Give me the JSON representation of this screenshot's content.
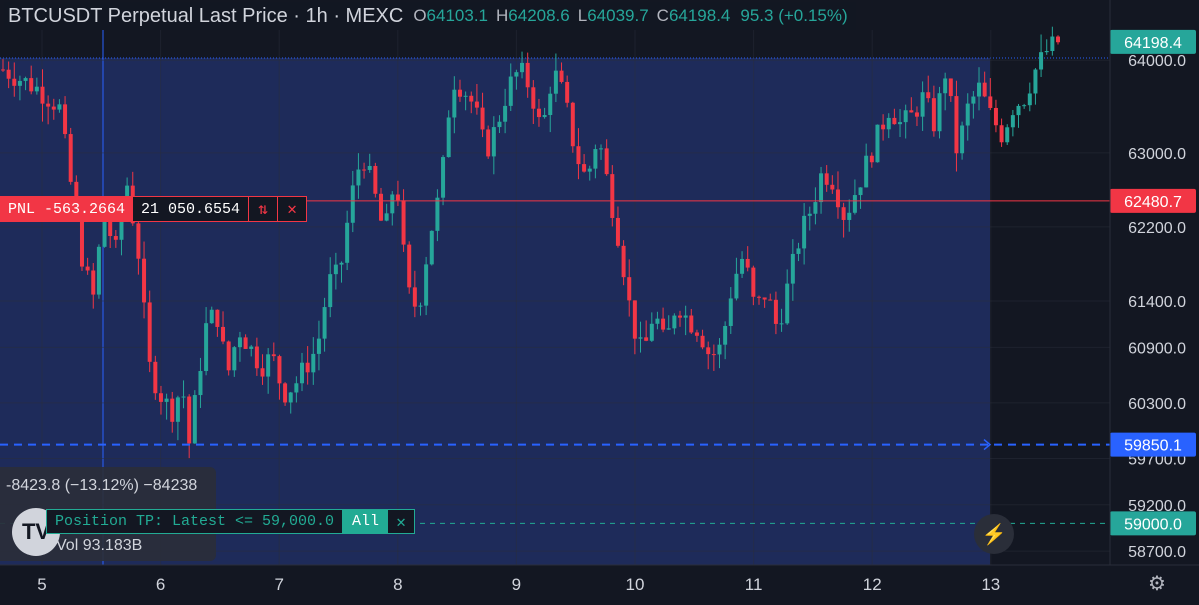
{
  "header": {
    "title": "BTCUSDT Perpetual Last Price · 1h · MEXC",
    "ohlc": [
      {
        "key": "O",
        "value": "64103.1"
      },
      {
        "key": "H",
        "value": "64208.6"
      },
      {
        "key": "L",
        "value": "64039.7"
      },
      {
        "key": "C",
        "value": "64198.4"
      }
    ],
    "change": "95.3 (+0.15%)"
  },
  "position": {
    "pnl_label": "PNL -563.2664",
    "size": "21 050.6554",
    "reverse_icon": "reverse-arrows-icon",
    "close_icon": "close-icon"
  },
  "take_profit": {
    "label": "Position TP: Latest <= 59,000.0",
    "all_label": "All",
    "close_icon": "close-icon"
  },
  "stats": {
    "measure": "-8423.8 (−13.12%) −84238",
    "volume": "Vol 93.183B"
  },
  "logo_text": "TV",
  "icons": {
    "bolt": "lightning-icon",
    "settings": "gear-icon"
  },
  "colors": {
    "background": "#131722",
    "highlight": "#1e2b5a",
    "up": "#26a69a",
    "down": "#f23645",
    "entry_line": "#f23645",
    "tp_line": "#22ab94",
    "blue_line": "#2962ff"
  },
  "chart_data": {
    "type": "candlestick",
    "title": "BTCUSDT Perpetual Last Price · 1h · MEXC",
    "x_tick_labels": [
      "5",
      "6",
      "7",
      "8",
      "9",
      "10",
      "11",
      "12",
      "13"
    ],
    "y_tick_labels": [
      "64000.0",
      "63000.0",
      "62200.0",
      "61400.0",
      "60900.0",
      "60300.0",
      "59700.0",
      "59200.0",
      "58700.0"
    ],
    "ylim": [
      58550,
      64650
    ],
    "price_labels": [
      {
        "value": 64198.4,
        "text": "64198.4",
        "kind": "last"
      },
      {
        "value": 62480.7,
        "text": "62480.7",
        "kind": "entry"
      },
      {
        "value": 59850.1,
        "text": "59850.1",
        "kind": "blue"
      },
      {
        "value": 59000.0,
        "text": "59000.0",
        "kind": "tp"
      }
    ],
    "close_path": [
      [
        0,
        63900
      ],
      [
        3,
        63700
      ],
      [
        5,
        63500
      ],
      [
        6,
        62700
      ],
      [
        7,
        61900
      ],
      [
        8,
        61400
      ],
      [
        9,
        62400
      ],
      [
        10,
        61900
      ],
      [
        11,
        62700
      ],
      [
        12,
        62000
      ],
      [
        13,
        60700
      ],
      [
        14,
        60400
      ],
      [
        15,
        60200
      ],
      [
        16,
        60500
      ],
      [
        16.5,
        59800
      ],
      [
        17,
        60200
      ],
      [
        18,
        61100
      ],
      [
        19,
        61300
      ],
      [
        20,
        60600
      ],
      [
        21,
        61100
      ],
      [
        22,
        60900
      ],
      [
        23,
        60700
      ],
      [
        24,
        60800
      ],
      [
        25,
        60400
      ],
      [
        26,
        60500
      ],
      [
        27,
        60700
      ],
      [
        28,
        60900
      ],
      [
        29,
        61600
      ],
      [
        30,
        61700
      ],
      [
        31,
        62500
      ],
      [
        32,
        63000
      ],
      [
        33,
        62600
      ],
      [
        34,
        62100
      ],
      [
        35,
        62800
      ],
      [
        36,
        61500
      ],
      [
        37,
        61300
      ],
      [
        38,
        62100
      ],
      [
        39,
        62600
      ],
      [
        40,
        63800
      ],
      [
        41,
        63700
      ],
      [
        42,
        63500
      ],
      [
        43,
        63000
      ],
      [
        44,
        63300
      ],
      [
        45,
        63700
      ],
      [
        46,
        63900
      ],
      [
        47,
        63700
      ],
      [
        48,
        63200
      ],
      [
        49,
        63900
      ],
      [
        50,
        63600
      ],
      [
        51,
        63000
      ],
      [
        52,
        62700
      ],
      [
        53,
        63200
      ],
      [
        54,
        62600
      ],
      [
        55,
        62000
      ],
      [
        56,
        61200
      ],
      [
        57,
        60800
      ],
      [
        58,
        61300
      ],
      [
        59,
        60900
      ],
      [
        60,
        61400
      ],
      [
        61,
        61200
      ],
      [
        62,
        61100
      ],
      [
        63,
        60800
      ],
      [
        64,
        60900
      ],
      [
        65,
        61600
      ],
      [
        66,
        61900
      ],
      [
        67,
        61300
      ],
      [
        68,
        61500
      ],
      [
        69,
        61100
      ],
      [
        70,
        61600
      ],
      [
        71,
        62100
      ],
      [
        72,
        62400
      ],
      [
        73,
        62800
      ],
      [
        74,
        62700
      ],
      [
        75,
        62300
      ],
      [
        76,
        62600
      ],
      [
        77,
        62900
      ],
      [
        78,
        63200
      ],
      [
        79,
        63500
      ],
      [
        80,
        63300
      ],
      [
        81,
        63400
      ],
      [
        82,
        63600
      ],
      [
        83,
        63300
      ],
      [
        84,
        63900
      ],
      [
        85,
        63000
      ],
      [
        86,
        63500
      ],
      [
        87,
        63700
      ],
      [
        88,
        63400
      ],
      [
        89,
        63200
      ],
      [
        90,
        63500
      ],
      [
        91,
        63600
      ],
      [
        92,
        63900
      ],
      [
        93,
        64100
      ],
      [
        94,
        64198.4
      ]
    ]
  }
}
